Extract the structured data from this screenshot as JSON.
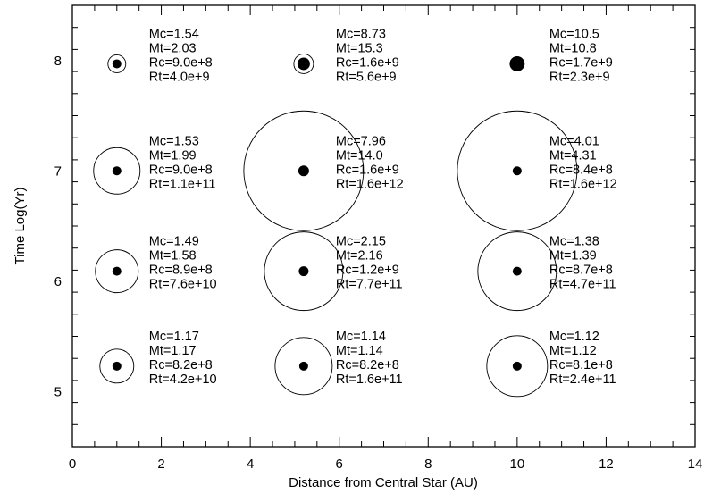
{
  "chart_data": {
    "type": "scatter",
    "title": "",
    "xlabel": "Distance from Central Star (AU)",
    "ylabel": "Time Log(Yr)",
    "xlim": [
      0,
      14
    ],
    "ylim": [
      4.5,
      8.5
    ],
    "x_ticks": [
      0,
      2,
      4,
      6,
      8,
      10,
      12,
      14
    ],
    "x_tick_labels": [
      "0",
      "2",
      "4",
      "6",
      "8",
      "10",
      "12",
      "14"
    ],
    "y_ticks": [
      5,
      6,
      7,
      8
    ],
    "y_tick_labels": [
      "5",
      "6",
      "7",
      "8"
    ],
    "grid": false,
    "encoding": "filled dot radius ~ Rc, open circle radius ~ Rt",
    "points": [
      {
        "x": 1.0,
        "y": 5.23,
        "Mc": "1.17",
        "Mt": "1.17",
        "Rc": "8.2e+8",
        "Rt": "4.2e+10",
        "core_r": 5.0,
        "total_r": 19
      },
      {
        "x": 5.2,
        "y": 5.23,
        "Mc": "1.14",
        "Mt": "1.14",
        "Rc": "8.2e+8",
        "Rt": "1.6e+11",
        "core_r": 5.0,
        "total_r": 32
      },
      {
        "x": 10.0,
        "y": 5.23,
        "Mc": "1.12",
        "Mt": "1.12",
        "Rc": "8.1e+8",
        "Rt": "2.4e+11",
        "core_r": 5.0,
        "total_r": 34
      },
      {
        "x": 1.0,
        "y": 6.09,
        "Mc": "1.49",
        "Mt": "1.58",
        "Rc": "8.9e+8",
        "Rt": "7.6e+10",
        "core_r": 5.0,
        "total_r": 24
      },
      {
        "x": 5.2,
        "y": 6.09,
        "Mc": "2.15",
        "Mt": "2.16",
        "Rc": "1.2e+9",
        "Rt": "7.7e+11",
        "core_r": 5.5,
        "total_r": 44
      },
      {
        "x": 10.0,
        "y": 6.09,
        "Mc": "1.38",
        "Mt": "1.39",
        "Rc": "8.7e+8",
        "Rt": "4.7e+11",
        "core_r": 5.0,
        "total_r": 44
      },
      {
        "x": 1.0,
        "y": 7.0,
        "Mc": "1.53",
        "Mt": "1.99",
        "Rc": "9.0e+8",
        "Rt": "1.1e+11",
        "core_r": 5.0,
        "total_r": 26
      },
      {
        "x": 5.2,
        "y": 7.0,
        "Mc": "7.96",
        "Mt": "14.0",
        "Rc": "1.6e+9",
        "Rt": "1.6e+12",
        "core_r": 6.0,
        "total_r": 67
      },
      {
        "x": 10.0,
        "y": 7.0,
        "Mc": "4.01",
        "Mt": "4.31",
        "Rc": "8.4e+8",
        "Rt": "1.6e+12",
        "core_r": 5.0,
        "total_r": 67
      },
      {
        "x": 1.0,
        "y": 7.97,
        "Mc": "1.54",
        "Mt": "2.03",
        "Rc": "9.0e+8",
        "Rt": "4.0e+9",
        "core_r": 5.0,
        "total_r": 10
      },
      {
        "x": 5.2,
        "y": 7.97,
        "Mc": "8.73",
        "Mt": "15.3",
        "Rc": "1.6e+9",
        "Rt": "5.6e+9",
        "core_r": 7.0,
        "total_r": 11
      },
      {
        "x": 10.0,
        "y": 7.97,
        "Mc": "10.5",
        "Mt": "10.8",
        "Rc": "1.7e+9",
        "Rt": "2.3e+9",
        "core_r": 8.0,
        "total_r": 8
      }
    ]
  }
}
